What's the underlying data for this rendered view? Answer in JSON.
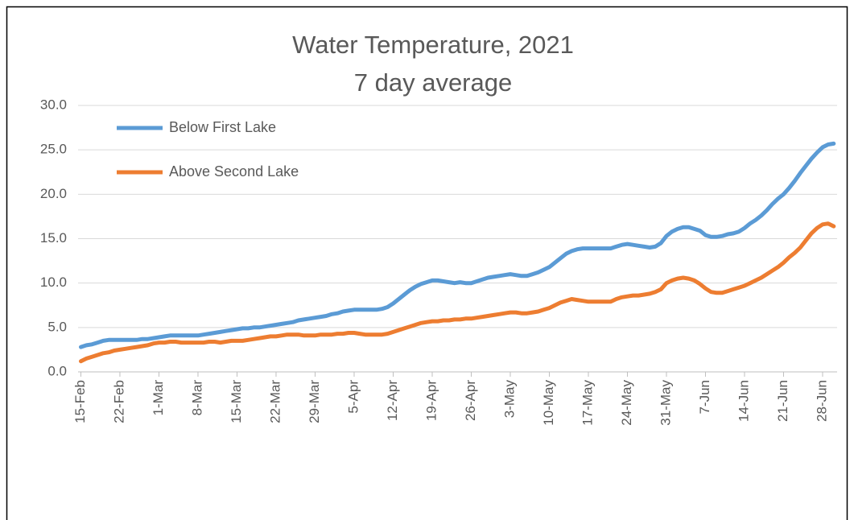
{
  "chart_data": {
    "type": "line",
    "title": "Water Temperature, 2021",
    "subtitle": "7 day average",
    "categories": [
      "15-Feb",
      null,
      null,
      null,
      null,
      null,
      null,
      "22-Feb",
      null,
      null,
      null,
      null,
      null,
      null,
      "1-Mar",
      null,
      null,
      null,
      null,
      null,
      null,
      "8-Mar",
      null,
      null,
      null,
      null,
      null,
      null,
      "15-Mar",
      null,
      null,
      null,
      null,
      null,
      null,
      "22-Mar",
      null,
      null,
      null,
      null,
      null,
      null,
      "29-Mar",
      null,
      null,
      null,
      null,
      null,
      null,
      "5-Apr",
      null,
      null,
      null,
      null,
      null,
      null,
      "12-Apr",
      null,
      null,
      null,
      null,
      null,
      null,
      "19-Apr",
      null,
      null,
      null,
      null,
      null,
      null,
      "26-Apr",
      null,
      null,
      null,
      null,
      null,
      null,
      "3-May",
      null,
      null,
      null,
      null,
      null,
      null,
      "10-May",
      null,
      null,
      null,
      null,
      null,
      null,
      "17-May",
      null,
      null,
      null,
      null,
      null,
      null,
      "24-May",
      null,
      null,
      null,
      null,
      null,
      null,
      "31-May",
      null,
      null,
      null,
      null,
      null,
      null,
      "7-Jun",
      null,
      null,
      null,
      null,
      null,
      null,
      "14-Jun",
      null,
      null,
      null,
      null,
      null,
      null,
      "21-Jun",
      null,
      null,
      null,
      null,
      null,
      null,
      "28-Jun",
      null,
      null
    ],
    "series": [
      {
        "name": "Below First Lake",
        "color": "#5b9bd5",
        "values": [
          2.8,
          3.0,
          3.1,
          3.3,
          3.5,
          3.6,
          3.6,
          3.6,
          3.6,
          3.6,
          3.6,
          3.7,
          3.7,
          3.8,
          3.9,
          4.0,
          4.1,
          4.1,
          4.1,
          4.1,
          4.1,
          4.1,
          4.2,
          4.3,
          4.4,
          4.5,
          4.6,
          4.7,
          4.8,
          4.9,
          4.9,
          5.0,
          5.0,
          5.1,
          5.2,
          5.3,
          5.4,
          5.5,
          5.6,
          5.8,
          5.9,
          6.0,
          6.1,
          6.2,
          6.3,
          6.5,
          6.6,
          6.8,
          6.9,
          7.0,
          7.0,
          7.0,
          7.0,
          7.0,
          7.1,
          7.3,
          7.7,
          8.2,
          8.7,
          9.2,
          9.6,
          9.9,
          10.1,
          10.3,
          10.3,
          10.2,
          10.1,
          10.0,
          10.1,
          10.0,
          10.0,
          10.2,
          10.4,
          10.6,
          10.7,
          10.8,
          10.9,
          11.0,
          10.9,
          10.8,
          10.8,
          11.0,
          11.2,
          11.5,
          11.8,
          12.3,
          12.8,
          13.3,
          13.6,
          13.8,
          13.9,
          13.9,
          13.9,
          13.9,
          13.9,
          13.9,
          14.1,
          14.3,
          14.4,
          14.3,
          14.2,
          14.1,
          14.0,
          14.1,
          14.5,
          15.3,
          15.8,
          16.1,
          16.3,
          16.3,
          16.1,
          15.9,
          15.4,
          15.2,
          15.2,
          15.3,
          15.5,
          15.6,
          15.8,
          16.2,
          16.7,
          17.1,
          17.6,
          18.2,
          18.9,
          19.5,
          20.0,
          20.7,
          21.5,
          22.4,
          23.2,
          24.0,
          24.7,
          25.3,
          25.6,
          25.7
        ]
      },
      {
        "name": "Above Second Lake",
        "color": "#ed7d31",
        "values": [
          1.2,
          1.5,
          1.7,
          1.9,
          2.1,
          2.2,
          2.4,
          2.5,
          2.6,
          2.7,
          2.8,
          2.9,
          3.0,
          3.2,
          3.3,
          3.3,
          3.4,
          3.4,
          3.3,
          3.3,
          3.3,
          3.3,
          3.3,
          3.4,
          3.4,
          3.3,
          3.4,
          3.5,
          3.5,
          3.5,
          3.6,
          3.7,
          3.8,
          3.9,
          4.0,
          4.0,
          4.1,
          4.2,
          4.2,
          4.2,
          4.1,
          4.1,
          4.1,
          4.2,
          4.2,
          4.2,
          4.3,
          4.3,
          4.4,
          4.4,
          4.3,
          4.2,
          4.2,
          4.2,
          4.2,
          4.3,
          4.5,
          4.7,
          4.9,
          5.1,
          5.3,
          5.5,
          5.6,
          5.7,
          5.7,
          5.8,
          5.8,
          5.9,
          5.9,
          6.0,
          6.0,
          6.1,
          6.2,
          6.3,
          6.4,
          6.5,
          6.6,
          6.7,
          6.7,
          6.6,
          6.6,
          6.7,
          6.8,
          7.0,
          7.2,
          7.5,
          7.8,
          8.0,
          8.2,
          8.1,
          8.0,
          7.9,
          7.9,
          7.9,
          7.9,
          7.9,
          8.2,
          8.4,
          8.5,
          8.6,
          8.6,
          8.7,
          8.8,
          9.0,
          9.3,
          10.0,
          10.3,
          10.5,
          10.6,
          10.5,
          10.3,
          9.9,
          9.4,
          9.0,
          8.9,
          8.9,
          9.1,
          9.3,
          9.5,
          9.7,
          10.0,
          10.3,
          10.6,
          11.0,
          11.4,
          11.8,
          12.3,
          12.9,
          13.4,
          14.0,
          14.8,
          15.6,
          16.2,
          16.6,
          16.7,
          16.4
        ]
      }
    ],
    "ylim": [
      0,
      30
    ],
    "yticks": [
      {
        "value": 0,
        "label": "0.0"
      },
      {
        "value": 5,
        "label": "5.0"
      },
      {
        "value": 10,
        "label": "10.0"
      },
      {
        "value": 15,
        "label": "15.0"
      },
      {
        "value": 20,
        "label": "20.0"
      },
      {
        "value": 25,
        "label": "25.0"
      },
      {
        "value": 30,
        "label": "30.0"
      }
    ],
    "grid": true,
    "legend": "top-left"
  }
}
